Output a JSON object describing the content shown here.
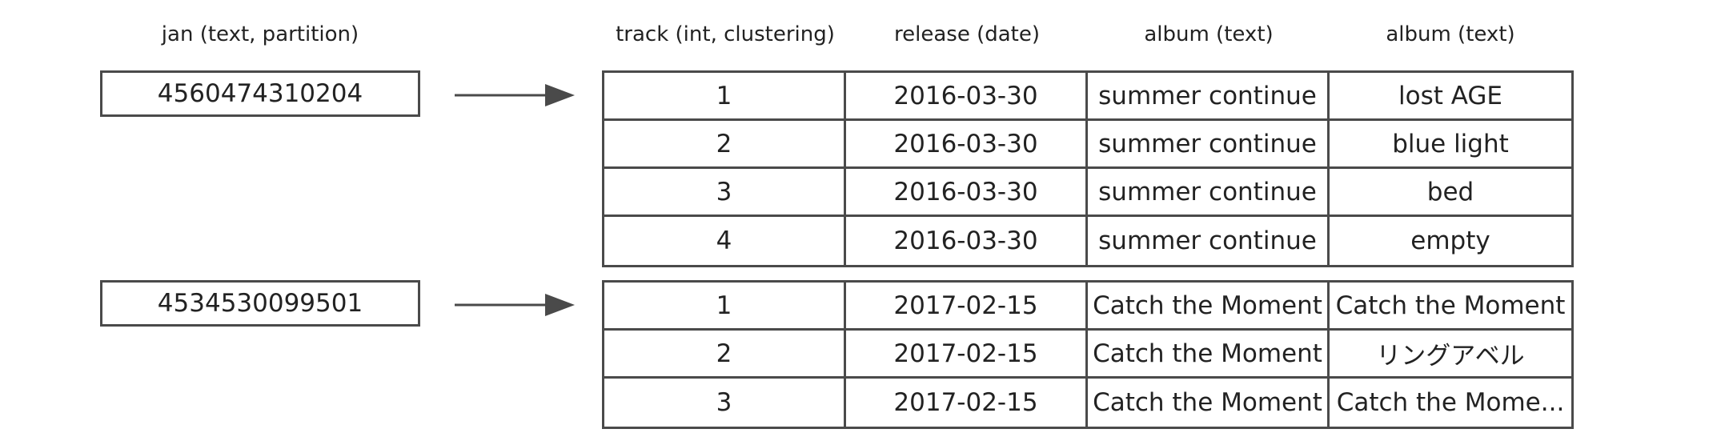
{
  "headers": {
    "partition_key": "jan (text, partition)",
    "col1": "track (int, clustering)",
    "col2": "release (date)",
    "col3": "album (text)",
    "col4": "album (text)"
  },
  "partitions": [
    {
      "key": "4560474310204",
      "rows": [
        [
          "1",
          "2016-03-30",
          "summer continue",
          "lost AGE"
        ],
        [
          "2",
          "2016-03-30",
          "summer continue",
          "blue light"
        ],
        [
          "3",
          "2016-03-30",
          "summer continue",
          "bed"
        ],
        [
          "4",
          "2016-03-30",
          "summer continue",
          "empty"
        ]
      ]
    },
    {
      "key": "4534530099501",
      "rows": [
        [
          "1",
          "2017-02-15",
          "Catch the Moment",
          "Catch the Moment"
        ],
        [
          "2",
          "2017-02-15",
          "Catch the Moment",
          "リングアベル"
        ],
        [
          "3",
          "2017-02-15",
          "Catch the Moment",
          "Catch the Mome..."
        ]
      ]
    }
  ],
  "colors": {
    "border": "#4a4a4a",
    "arrow": "#4a4a4a",
    "text": "#222222"
  }
}
